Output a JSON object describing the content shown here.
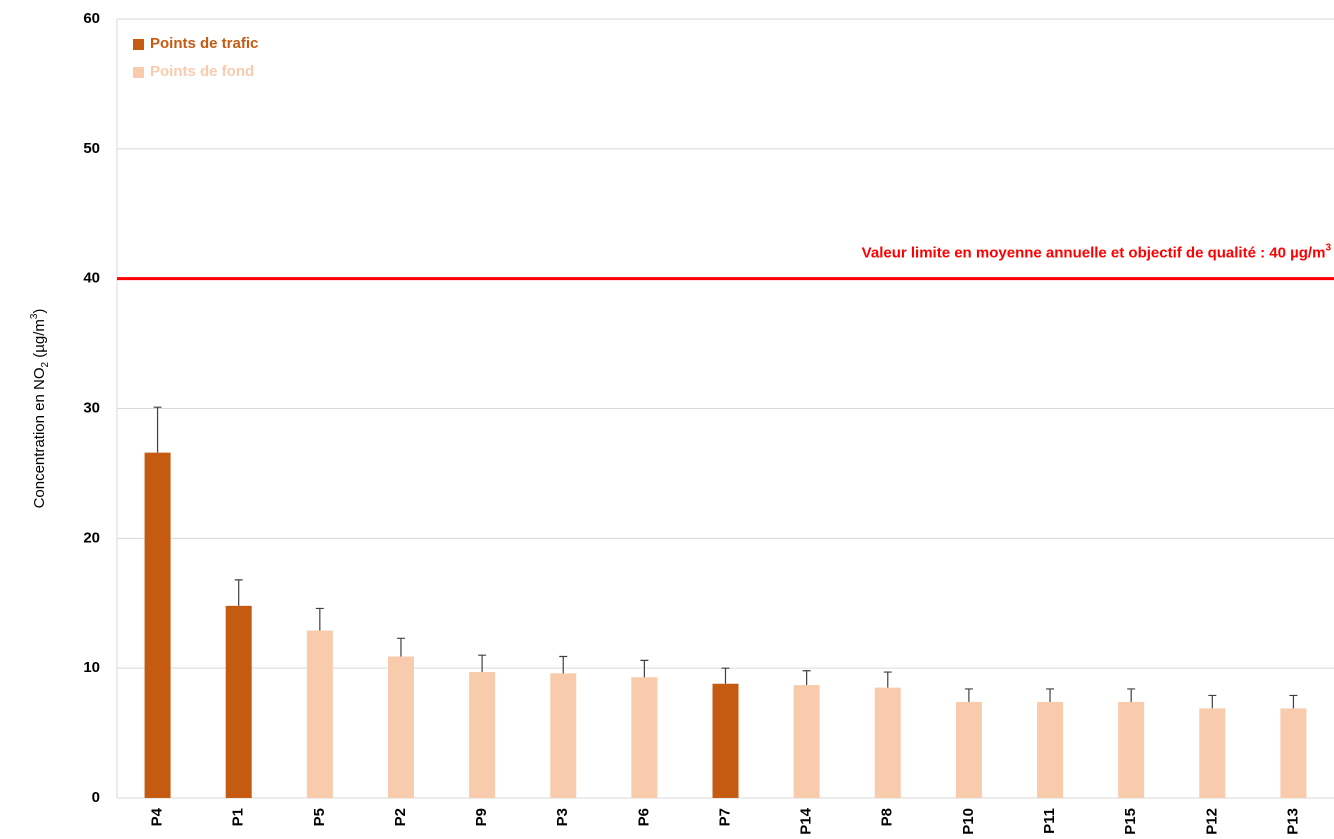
{
  "chart_data": {
    "type": "bar",
    "categories": [
      "P4",
      "P1",
      "P5",
      "P2",
      "P9",
      "P3",
      "P6",
      "P7",
      "P14",
      "P8",
      "P10",
      "P11",
      "P15",
      "P12",
      "P13"
    ],
    "series": [
      {
        "name": "Points de trafic",
        "color": "#c55a11",
        "values": [
          26.6,
          14.8,
          null,
          null,
          null,
          null,
          null,
          8.8,
          null,
          null,
          null,
          null,
          null,
          null,
          null
        ],
        "errors": [
          3.5,
          2.0,
          null,
          null,
          null,
          null,
          null,
          1.2,
          null,
          null,
          null,
          null,
          null,
          null,
          null
        ]
      },
      {
        "name": "Points de fond",
        "color": "#f8cbad",
        "values": [
          null,
          null,
          12.9,
          10.9,
          9.7,
          9.6,
          9.3,
          null,
          8.7,
          8.5,
          7.4,
          7.4,
          7.4,
          6.9,
          6.9
        ],
        "errors": [
          null,
          null,
          1.7,
          1.4,
          1.3,
          1.3,
          1.3,
          null,
          1.1,
          1.2,
          1.0,
          1.0,
          1.0,
          1.0,
          1.0
        ]
      }
    ],
    "ylabel": [
      "Concentration en NO",
      "2",
      " (µg/m",
      "3",
      ")"
    ],
    "ylim": [
      0,
      60
    ],
    "yticks": [
      0,
      10,
      20,
      30,
      40,
      50,
      60
    ],
    "grid": true,
    "legend": "top-left",
    "error_color": "#404040",
    "reference_line": {
      "value": 40,
      "color": "#ff0000",
      "label": [
        "Valeur limite en moyenne annuelle et objectif de qualité : 40 µg/m",
        "3"
      ]
    }
  }
}
